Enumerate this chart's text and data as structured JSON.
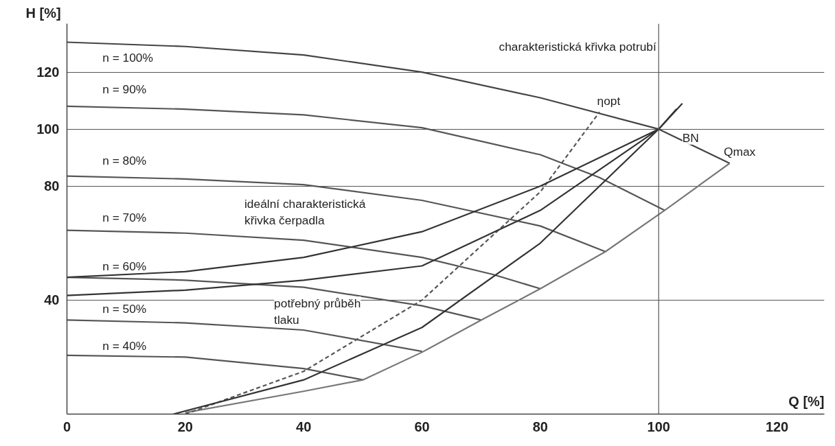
{
  "chart_data": {
    "type": "line",
    "xlabel": "Q [%]",
    "ylabel": "H [%]",
    "xlim": [
      0,
      128
    ],
    "ylim": [
      0,
      137
    ],
    "xticks": [
      0,
      20,
      40,
      60,
      80,
      100,
      120
    ],
    "yticks": [
      40,
      80,
      100,
      120
    ],
    "grid": "y",
    "marker": "none",
    "line_style": "solid",
    "ref_lines": [
      {
        "axis": "x",
        "value": 100,
        "label": null
      }
    ],
    "series": [
      {
        "color": "#444444",
        "x": [
          0,
          20,
          40,
          60,
          80,
          100,
          112
        ],
        "values": [
          130.5,
          129,
          126,
          120,
          111,
          100,
          88
        ]
      },
      {
        "color": "#555555",
        "x": [
          0,
          20,
          40,
          60,
          80,
          90,
          101
        ],
        "values": [
          108,
          107,
          105,
          100.5,
          91,
          83,
          71.5
        ]
      },
      {
        "color": "#555555",
        "x": [
          0,
          20,
          40,
          60,
          80,
          91
        ],
        "values": [
          83.5,
          82.5,
          80.5,
          75,
          66,
          57
        ]
      },
      {
        "color": "#555555",
        "x": [
          0,
          20,
          40,
          60,
          72,
          80
        ],
        "values": [
          64.5,
          63.5,
          61,
          55,
          49,
          44
        ]
      },
      {
        "color": "#555555",
        "x": [
          0,
          20,
          40,
          60,
          70
        ],
        "values": [
          48,
          47,
          44.5,
          38,
          33
        ]
      },
      {
        "color": "#555555",
        "x": [
          0,
          20,
          40,
          60
        ],
        "values": [
          33,
          32,
          29.5,
          22
        ]
      },
      {
        "color": "#555555",
        "x": [
          0,
          20,
          40,
          50
        ],
        "values": [
          20.6,
          20,
          16,
          12
        ]
      },
      {
        "color": "#777777",
        "x": [
          20,
          40,
          50,
          60,
          70,
          80,
          91,
          101,
          112
        ],
        "values": [
          0.5,
          8,
          12,
          21.7,
          33,
          44,
          57,
          71.5,
          88
        ]
      },
      {
        "color": "#555555",
        "line_style": "dashed",
        "x": [
          20,
          40,
          60,
          80,
          90
        ],
        "values": [
          0,
          15,
          40,
          78,
          106
        ]
      },
      {
        "color": "#333333",
        "x": [
          18,
          40,
          60,
          80,
          100,
          104
        ],
        "values": [
          0,
          12,
          30.4,
          60,
          100,
          109
        ]
      },
      {
        "color": "#333333",
        "x": [
          0,
          20,
          40,
          60,
          80,
          100,
          103
        ],
        "values": [
          48,
          50,
          55,
          64,
          80,
          100,
          107
        ]
      },
      {
        "color": "#333333",
        "x": [
          0,
          20,
          40,
          60,
          80,
          100
        ],
        "values": [
          41.6,
          43.5,
          47,
          52,
          71.5,
          100
        ]
      }
    ],
    "annotations": [
      "n = 100%",
      "n = 90%",
      "n = 80%",
      "n = 70%",
      "n = 60%",
      "n = 50%",
      "n = 40%",
      "charakteristická křivka potrubí",
      "ideální charakteristická\nkřivka čerpadla",
      "potřebný průběh\ntlaku",
      "ηopt",
      "BN",
      "Qmax"
    ]
  }
}
